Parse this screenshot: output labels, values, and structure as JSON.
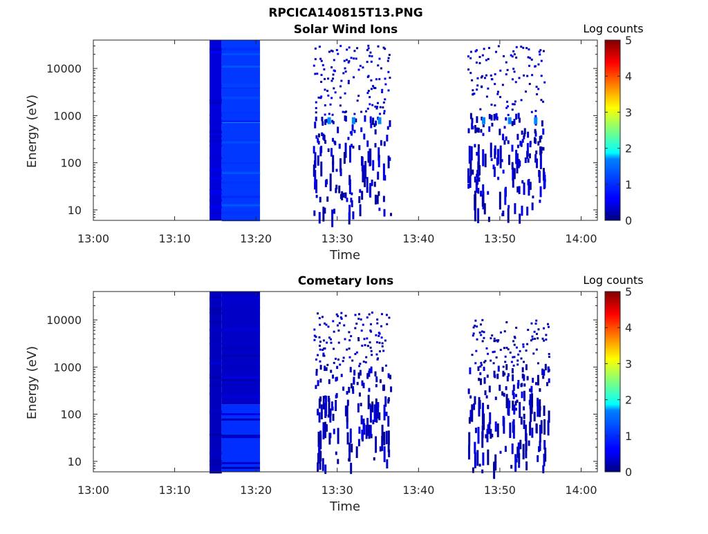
{
  "figure_title": "RPCICA140815T13.PNG",
  "colorbar": {
    "label": "Log counts",
    "ticks": [
      "0",
      "1",
      "2",
      "3",
      "4",
      "5"
    ],
    "range": [
      0,
      5
    ],
    "colormap": "jet"
  },
  "chart_data": [
    {
      "type": "heatmap",
      "title": "Solar Wind Ions",
      "xlabel": "Time",
      "ylabel": "Energy (eV)",
      "yscale": "log",
      "x_ticks": [
        "13:00",
        "13:10",
        "13:20",
        "13:30",
        "13:40",
        "13:50",
        "14:00"
      ],
      "y_ticks": [
        "10",
        "100",
        "1000",
        "10000"
      ],
      "xlim": [
        "13:00",
        "14:02"
      ],
      "ylim": [
        6,
        40000
      ],
      "bands": [
        {
          "t_start": "13:14.3",
          "t_end": "13:15.8",
          "e_min": 6,
          "e_max": 40000,
          "log_counts": 0.45
        },
        {
          "t_start": "13:15.8",
          "t_end": "13:20.5",
          "e_min": 6,
          "e_max": 40000,
          "log_counts": 0.9
        },
        {
          "t_start": "13:15.8",
          "t_end": "13:20.5",
          "e_min": 700,
          "e_max": 780,
          "log_counts": 1.6
        }
      ],
      "scatter_groups": [
        {
          "t_start": "13:27",
          "t_end": "13:36.5",
          "e_min": 6,
          "e_max": 35000,
          "log_counts": 0.1
        },
        {
          "t_start": "13:46",
          "t_end": "13:55.5",
          "e_min": 6,
          "e_max": 30000,
          "log_counts": 0.1
        }
      ],
      "highlights": [
        {
          "t": "13:28.8",
          "e": 780,
          "log_counts": 1.3
        },
        {
          "t": "13:31.8",
          "e": 780,
          "log_counts": 1.3
        },
        {
          "t": "13:35.0",
          "e": 780,
          "log_counts": 1.3
        },
        {
          "t": "13:47.8",
          "e": 780,
          "log_counts": 1.3
        },
        {
          "t": "13:51.0",
          "e": 780,
          "log_counts": 1.3
        },
        {
          "t": "13:54.2",
          "e": 780,
          "log_counts": 1.3
        }
      ]
    },
    {
      "type": "heatmap",
      "title": "Cometary Ions",
      "xlabel": "Time",
      "ylabel": "Energy (eV)",
      "yscale": "log",
      "x_ticks": [
        "13:00",
        "13:10",
        "13:20",
        "13:30",
        "13:40",
        "13:50",
        "14:00"
      ],
      "y_ticks": [
        "10",
        "100",
        "1000",
        "10000"
      ],
      "xlim": [
        "13:00",
        "14:02"
      ],
      "ylim": [
        6,
        40000
      ],
      "bands": [
        {
          "t_start": "13:14.3",
          "t_end": "13:15.8",
          "e_min": 6,
          "e_max": 40000,
          "log_counts": 0.3
        },
        {
          "t_start": "13:15.8",
          "t_end": "13:20.5",
          "e_min": 160,
          "e_max": 40000,
          "log_counts": 0.35
        },
        {
          "t_start": "13:15.8",
          "t_end": "13:20.5",
          "e_min": 6,
          "e_max": 160,
          "log_counts": 0.85
        }
      ],
      "scatter_groups": [
        {
          "t_start": "13:27",
          "t_end": "13:36.5",
          "e_min": 6,
          "e_max": 15000,
          "log_counts": 0.05
        },
        {
          "t_start": "13:46",
          "t_end": "13:56",
          "e_min": 6,
          "e_max": 10000,
          "log_counts": 0.05
        }
      ],
      "highlights": []
    }
  ]
}
